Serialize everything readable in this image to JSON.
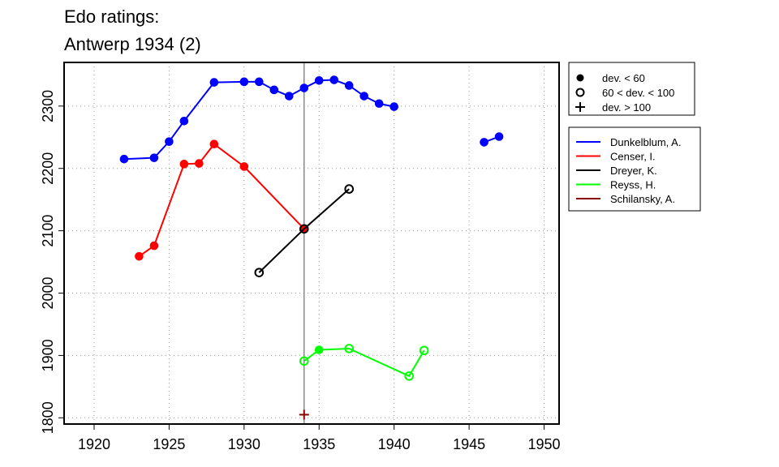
{
  "chart_data": {
    "type": "line",
    "title": [
      "Edo ratings:",
      "Antwerp 1934 (2)"
    ],
    "xlabel": "",
    "ylabel": "",
    "xlim": [
      1918,
      1951
    ],
    "ylim": [
      1790,
      2370
    ],
    "x_ticks": [
      1920,
      1925,
      1930,
      1935,
      1940,
      1945,
      1950
    ],
    "y_ticks": [
      1800,
      1900,
      2000,
      2100,
      2200,
      2300
    ],
    "grid": true,
    "reference_line_x": 1934,
    "marker_legend": {
      "placement": "top-right",
      "entries": [
        {
          "symbol": "filled-circle",
          "label": "dev. < 60"
        },
        {
          "symbol": "open-circle",
          "label": "60 < dev. < 100"
        },
        {
          "symbol": "plus",
          "label": "dev. > 100"
        }
      ]
    },
    "series_legend_placement": "right",
    "series": [
      {
        "name": "Dunkelblum, A.",
        "color": "#0000ff",
        "points": [
          {
            "x": 1922,
            "y": 2215,
            "marker": "filled"
          },
          {
            "x": 1924,
            "y": 2217,
            "marker": "filled"
          },
          {
            "x": 1925,
            "y": 2243,
            "marker": "filled"
          },
          {
            "x": 1926,
            "y": 2276,
            "marker": "filled"
          },
          {
            "x": 1928,
            "y": 2338,
            "marker": "filled"
          },
          {
            "x": 1930,
            "y": 2339,
            "marker": "filled"
          },
          {
            "x": 1931,
            "y": 2339,
            "marker": "filled"
          },
          {
            "x": 1932,
            "y": 2326,
            "marker": "filled"
          },
          {
            "x": 1933,
            "y": 2316,
            "marker": "filled"
          },
          {
            "x": 1934,
            "y": 2329,
            "marker": "filled"
          },
          {
            "x": 1935,
            "y": 2341,
            "marker": "filled"
          },
          {
            "x": 1936,
            "y": 2342,
            "marker": "filled"
          },
          {
            "x": 1937,
            "y": 2333,
            "marker": "filled"
          },
          {
            "x": 1938,
            "y": 2316,
            "marker": "filled"
          },
          {
            "x": 1939,
            "y": 2304,
            "marker": "filled"
          },
          {
            "x": 1940,
            "y": 2299,
            "marker": "filled"
          }
        ],
        "points_segment2": [
          {
            "x": 1946,
            "y": 2242,
            "marker": "filled"
          },
          {
            "x": 1947,
            "y": 2251,
            "marker": "filled"
          }
        ]
      },
      {
        "name": "Censer, I.",
        "color": "#ff0000",
        "points": [
          {
            "x": 1923,
            "y": 2059,
            "marker": "filled"
          },
          {
            "x": 1924,
            "y": 2076,
            "marker": "filled"
          },
          {
            "x": 1926,
            "y": 2207,
            "marker": "filled"
          },
          {
            "x": 1927,
            "y": 2208,
            "marker": "filled"
          },
          {
            "x": 1928,
            "y": 2239,
            "marker": "filled"
          },
          {
            "x": 1930,
            "y": 2203,
            "marker": "filled"
          },
          {
            "x": 1934,
            "y": 2103,
            "marker": "filled"
          }
        ]
      },
      {
        "name": "Dreyer, K.",
        "color": "#000000",
        "points": [
          {
            "x": 1931,
            "y": 2033,
            "marker": "open"
          },
          {
            "x": 1934,
            "y": 2103,
            "marker": "open"
          },
          {
            "x": 1937,
            "y": 2167,
            "marker": "open"
          }
        ]
      },
      {
        "name": "Reyss, H.",
        "color": "#00ff00",
        "points": [
          {
            "x": 1934,
            "y": 1891,
            "marker": "open"
          },
          {
            "x": 1935,
            "y": 1909,
            "marker": "filled"
          },
          {
            "x": 1937,
            "y": 1911,
            "marker": "open"
          },
          {
            "x": 1941,
            "y": 1867,
            "marker": "open"
          },
          {
            "x": 1942,
            "y": 1908,
            "marker": "open"
          }
        ]
      },
      {
        "name": "Schilansky, A.",
        "color": "#8b0000",
        "points": [
          {
            "x": 1934,
            "y": 1805,
            "marker": "plus"
          }
        ]
      }
    ]
  }
}
